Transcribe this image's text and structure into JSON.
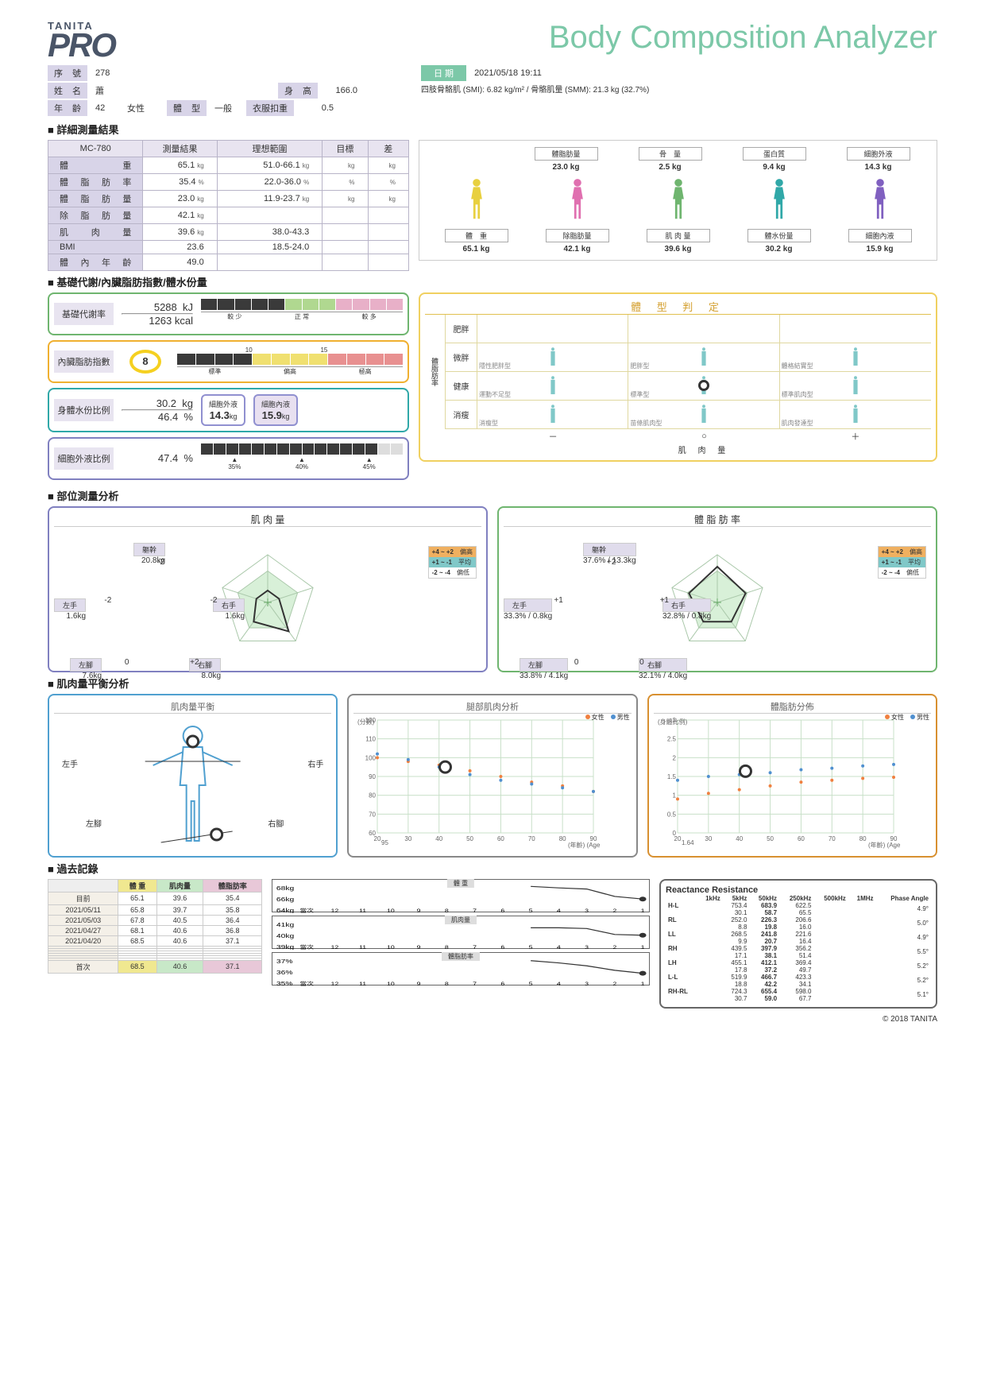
{
  "header": {
    "brand": "TANITA",
    "product": "PRO",
    "title": "Body Composition Analyzer"
  },
  "date": {
    "label": "日 期",
    "value": "2021/05/18 19:11"
  },
  "smi_text": "四肢骨骼肌 (SMI): 6.82 kg/m² /  骨骼肌量 (SMM): 21.3 kg (32.7%)",
  "info": {
    "serial_label": "序 號",
    "serial": "278",
    "name_label": "姓 名",
    "name": "蕭",
    "age_label": "年 齡",
    "age": "42",
    "gender": "女性",
    "bodytype_label": "體 型",
    "bodytype": "一般",
    "height_label": "身 高",
    "height": "166.0",
    "clothes_label": "衣服扣重",
    "clothes": "0.5"
  },
  "sections": {
    "detailed": "■ 詳細測量結果",
    "metabolic": "■ 基礎代謝/內臟脂肪指數/體水份量",
    "segmental": "■ 部位測量分析",
    "balance": "■ 肌肉量平衡分析",
    "history": "■ 過去記錄"
  },
  "result_table": {
    "device": "MC-780",
    "headers": [
      "測量結果",
      "理想範圍",
      "目標",
      "差"
    ],
    "rows": [
      {
        "label": "體　　重",
        "val": "65.1",
        "unit": "kg",
        "ideal": "51.0-66.1",
        "iu": "kg",
        "tu": "kg",
        "du": "kg"
      },
      {
        "label": "體脂肪率",
        "val": "35.4",
        "unit": "%",
        "ideal": "22.0-36.0",
        "iu": "%",
        "tu": "%",
        "du": "%"
      },
      {
        "label": "體脂肪量",
        "val": "23.0",
        "unit": "kg",
        "ideal": "11.9-23.7",
        "iu": "kg",
        "tu": "kg",
        "du": "kg"
      },
      {
        "label": "除脂肪量",
        "val": "42.1",
        "unit": "kg",
        "ideal": "",
        "iu": "",
        "tu": "",
        "du": ""
      },
      {
        "label": "肌 肉 量",
        "val": "39.6",
        "unit": "kg",
        "ideal": "38.0-43.3",
        "iu": "",
        "tu": "",
        "du": ""
      },
      {
        "label": "BMI",
        "val": "23.6",
        "unit": "",
        "ideal": "18.5-24.0",
        "iu": "",
        "tu": "",
        "du": ""
      },
      {
        "label": "體內年齡",
        "val": "49.0",
        "unit": "",
        "ideal": "",
        "iu": "",
        "tu": "",
        "du": ""
      }
    ]
  },
  "silhouettes": {
    "top": [
      {
        "label": "體脂肪量",
        "val": "23.0",
        "unit": "kg",
        "color": "#e8d040"
      },
      {
        "label": "骨　量",
        "val": "2.5",
        "unit": "kg",
        "color": "#6fb56f"
      },
      {
        "label": "蛋白質",
        "val": "9.4",
        "unit": "kg",
        "color": "#30a8a8"
      },
      {
        "label": "細胞外液",
        "val": "14.3",
        "unit": "kg",
        "color": "#5080d0"
      }
    ],
    "bottom": [
      {
        "label": "體　重",
        "val": "65.1",
        "unit": "kg",
        "color": "#e8d040"
      },
      {
        "label": "除脂肪量",
        "val": "42.1",
        "unit": "kg",
        "color": "#e070b0"
      },
      {
        "label": "肌 肉 量",
        "val": "39.6",
        "unit": "kg",
        "color": "#6fb56f"
      },
      {
        "label": "體水份量",
        "val": "30.2",
        "unit": "kg",
        "color": "#30a8a8"
      },
      {
        "label": "細胞內液",
        "val": "15.9",
        "unit": "kg",
        "color": "#8060c0"
      }
    ]
  },
  "bmr": {
    "label": "基礎代謝率",
    "kj": "5288",
    "kj_u": "kJ",
    "kcal": "1263",
    "kcal_u": "kcal",
    "scale": [
      "較 少",
      "正 常",
      "較 多"
    ],
    "blocks": [
      4,
      4,
      4
    ],
    "filled": 5,
    "colors": [
      "#5a5a5a",
      "#b0d890",
      "#e8b0c8"
    ],
    "border": "#6fb56f"
  },
  "vfat": {
    "label": "內臟脂肪指數",
    "value": "8",
    "marks": [
      "10",
      "15"
    ],
    "scale": [
      "標準",
      "偏高",
      "極高"
    ],
    "blocks": [
      4,
      4,
      4
    ],
    "filled": 4,
    "colors": [
      "#5a5a5a",
      "#f0e070",
      "#e89090"
    ],
    "border": "#f0b030"
  },
  "tbw": {
    "label": "身體水份比例",
    "kg": "30.2",
    "kg_u": "kg",
    "pct": "46.4",
    "pct_u": "%",
    "ecw_label": "細胞外液",
    "ecw": "14.3",
    "ecw_u": "kg",
    "icw_label": "細胞內液",
    "icw": "15.9",
    "icw_u": "kg",
    "border": "#30a8a8"
  },
  "ecw_ratio": {
    "label": "細胞外液比例",
    "value": "47.4",
    "unit": "%",
    "marks": [
      "35%",
      "40%",
      "45%"
    ],
    "filled": 14,
    "total": 16,
    "border": "#8080c0"
  },
  "body_type": {
    "title": "體 型 判 定",
    "y_axis": "體脂肪率",
    "x_axis": "肌 肉 量",
    "rows": [
      "肥胖",
      "微胖",
      "健康",
      "消瘦"
    ],
    "cells": [
      [
        "",
        "",
        ""
      ],
      [
        "隱性肥胖型",
        "肥胖型",
        "體格結實型"
      ],
      [
        "運動不足型",
        "標準型",
        "標準肌肉型"
      ],
      [
        "消瘦型",
        "苗條肌肉型",
        "肌肉發達型"
      ]
    ],
    "bottom": [
      "－",
      "○",
      "＋"
    ],
    "marker": {
      "row": 2,
      "col": 1
    }
  },
  "radar_muscle": {
    "title": "肌 肉 量",
    "border": "#8080c0",
    "nodes": {
      "trunk": {
        "label": "軀幹",
        "val": "20.8kg",
        "score": "-2"
      },
      "rarm": {
        "label": "右手",
        "val": "1.6kg",
        "score": "-2"
      },
      "rleg": {
        "label": "右腳",
        "val": "8.0kg",
        "score": "+2"
      },
      "lleg": {
        "label": "左腳",
        "val": "7.6kg",
        "score": "0"
      },
      "larm": {
        "label": "左手",
        "val": "1.6kg",
        "score": "-2"
      }
    },
    "legend": [
      [
        "+4 ~ +2",
        "偏高",
        "#f0b060"
      ],
      [
        "+1 ~ -1",
        "平均",
        "#80c8c8"
      ],
      [
        "-2 ~ -4",
        "偏低",
        "#fff"
      ]
    ],
    "values": [
      -2,
      -2,
      2,
      0,
      -2
    ]
  },
  "radar_fat": {
    "title": "體 脂 肪 率",
    "border": "#6fb56f",
    "nodes": {
      "trunk": {
        "label": "軀幹",
        "val": "37.6% / 13.3kg",
        "score": "+2"
      },
      "rarm": {
        "label": "右手",
        "val": "32.8% / 0.8kg",
        "score": "+1"
      },
      "rleg": {
        "label": "右腳",
        "val": "32.1% / 4.0kg",
        "score": "0"
      },
      "lleg": {
        "label": "左腳",
        "val": "33.8% / 4.1kg",
        "score": "0"
      },
      "larm": {
        "label": "左手",
        "val": "33.3% / 0.8kg",
        "score": "+1"
      }
    },
    "legend": [
      [
        "+4 ~ +2",
        "偏高",
        "#f0b060"
      ],
      [
        "+1 ~ -1",
        "平均",
        "#80c8c8"
      ],
      [
        "-2 ~ -4",
        "偏低",
        "#fff"
      ]
    ],
    "values": [
      2,
      1,
      0,
      0,
      1
    ]
  },
  "muscle_balance": {
    "title": "肌肉量平衡",
    "border": "#50a0d0",
    "labels": {
      "larm": "左手",
      "rarm": "右手",
      "lleg": "左腳",
      "rleg": "右腳"
    }
  },
  "leg_chart": {
    "title": "腿部肌肉分析",
    "border": "#888",
    "y_label": "(分數)",
    "x_label": "(年齡)",
    "x_label2": "(Age)",
    "y_ticks": [
      60,
      70,
      80,
      90,
      100,
      110,
      120
    ],
    "x_ticks": [
      20,
      30,
      40,
      50,
      60,
      70,
      80,
      90
    ],
    "legend": [
      "女性",
      "男性"
    ],
    "legend_colors": [
      "#f08040",
      "#5090d0"
    ],
    "marker_y": 95,
    "marker_x": 42,
    "female": [
      100,
      98,
      96,
      93,
      90,
      87,
      85,
      82
    ],
    "male": [
      102,
      99,
      95,
      91,
      88,
      86,
      84,
      82
    ]
  },
  "fat_dist": {
    "title": "體脂肪分佈",
    "border": "#d89030",
    "y_label": "(身體比例)",
    "x_label": "(年齡)",
    "x_label2": "(Age)",
    "y_ticks": [
      0.0,
      0.5,
      1.0,
      1.5,
      2.0,
      2.5,
      3.0
    ],
    "x_ticks": [
      20,
      30,
      40,
      50,
      60,
      70,
      80,
      90
    ],
    "legend": [
      "女性",
      "男性"
    ],
    "legend_colors": [
      "#f08040",
      "#5090d0"
    ],
    "marker_y": 1.64,
    "marker_x": 42,
    "female": [
      0.9,
      1.05,
      1.15,
      1.25,
      1.35,
      1.4,
      1.45,
      1.48
    ],
    "male": [
      1.4,
      1.5,
      1.55,
      1.6,
      1.68,
      1.72,
      1.78,
      1.82
    ]
  },
  "history": {
    "headers": [
      "",
      "體 重",
      "肌肉量",
      "體脂肪率"
    ],
    "header_colors": [
      "",
      "#f0e890",
      "#c8e8c8",
      "#e8c8d8"
    ],
    "rows": [
      [
        "目前",
        "65.1",
        "39.6",
        "35.4"
      ],
      [
        "2021/05/11",
        "65.8",
        "39.7",
        "35.8"
      ],
      [
        "2021/05/03",
        "67.8",
        "40.5",
        "36.4"
      ],
      [
        "2021/04/27",
        "68.1",
        "40.6",
        "36.8"
      ],
      [
        "2021/04/20",
        "68.5",
        "40.6",
        "37.1"
      ],
      [
        "",
        "",
        "",
        ""
      ],
      [
        "",
        "",
        "",
        ""
      ],
      [
        "",
        "",
        "",
        ""
      ],
      [
        "",
        "",
        "",
        ""
      ],
      [
        "",
        "",
        "",
        ""
      ],
      [
        "",
        "",
        "",
        ""
      ]
    ],
    "first": [
      "首次",
      "68.5",
      "40.6",
      "37.1"
    ]
  },
  "trend_charts": [
    {
      "title": "體 重",
      "y_ticks": [
        "64kg",
        "66kg",
        "68kg"
      ],
      "x_ticks": [
        "當次",
        "12",
        "11",
        "10",
        "9",
        "8",
        "7",
        "6",
        "5",
        "4",
        "3",
        "2",
        "1"
      ],
      "data": [
        65.1,
        65.8,
        67.8,
        68.1,
        68.5
      ],
      "y_min": 63,
      "y_max": 69
    },
    {
      "title": "肌肉量",
      "y_ticks": [
        "39kg",
        "40kg",
        "41kg"
      ],
      "x_ticks": [
        "當次",
        "12",
        "11",
        "10",
        "9",
        "8",
        "7",
        "6",
        "5",
        "4",
        "3",
        "2",
        "1"
      ],
      "data": [
        39.6,
        39.7,
        40.5,
        40.6,
        40.6
      ],
      "y_min": 38.5,
      "y_max": 41.5
    },
    {
      "title": "體脂肪率",
      "y_ticks": [
        "35%",
        "36%",
        "37%"
      ],
      "x_ticks": [
        "當次",
        "12",
        "11",
        "10",
        "9",
        "8",
        "7",
        "6",
        "5",
        "4",
        "3",
        "2",
        "1"
      ],
      "data": [
        35.4,
        35.8,
        36.4,
        36.8,
        37.1
      ],
      "y_min": 34.5,
      "y_max": 37.5
    }
  ],
  "reactance": {
    "title": "Reactance Resistance",
    "pa": "Phase Angle",
    "cols": [
      "1kHz",
      "5kHz",
      "50kHz",
      "250kHz",
      "500kHz",
      "1MHz"
    ],
    "rows": [
      {
        "label": "H-L",
        "r": [
          "",
          "753.4",
          "683.9",
          "622.5",
          "",
          ""
        ],
        "x": [
          "",
          "30.1",
          "58.7",
          "65.5",
          "",
          ""
        ],
        "pa": "4.9°"
      },
      {
        "label": "RL",
        "r": [
          "",
          "252.0",
          "226.3",
          "206.6",
          "",
          ""
        ],
        "x": [
          "",
          "8.8",
          "19.8",
          "16.0",
          "",
          ""
        ],
        "pa": "5.0°"
      },
      {
        "label": "LL",
        "r": [
          "",
          "268.5",
          "241.8",
          "221.6",
          "",
          ""
        ],
        "x": [
          "",
          "9.9",
          "20.7",
          "16.4",
          "",
          ""
        ],
        "pa": "4.9°"
      },
      {
        "label": "RH",
        "r": [
          "",
          "439.5",
          "397.9",
          "356.2",
          "",
          ""
        ],
        "x": [
          "",
          "17.1",
          "38.1",
          "51.4",
          "",
          ""
        ],
        "pa": "5.5°"
      },
      {
        "label": "LH",
        "r": [
          "",
          "455.1",
          "412.1",
          "369.4",
          "",
          ""
        ],
        "x": [
          "",
          "17.8",
          "37.2",
          "49.7",
          "",
          ""
        ],
        "pa": "5.2°"
      },
      {
        "label": "L-L",
        "r": [
          "",
          "519.9",
          "466.7",
          "423.3",
          "",
          ""
        ],
        "x": [
          "",
          "18.8",
          "42.2",
          "34.1",
          "",
          ""
        ],
        "pa": "5.2°"
      },
      {
        "label": "RH-RL",
        "r": [
          "",
          "724.3",
          "655.4",
          "598.0",
          "",
          ""
        ],
        "x": [
          "",
          "30.7",
          "59.0",
          "67.7",
          "",
          ""
        ],
        "pa": "5.1°"
      }
    ]
  },
  "footer": "© 2018 TANITA"
}
